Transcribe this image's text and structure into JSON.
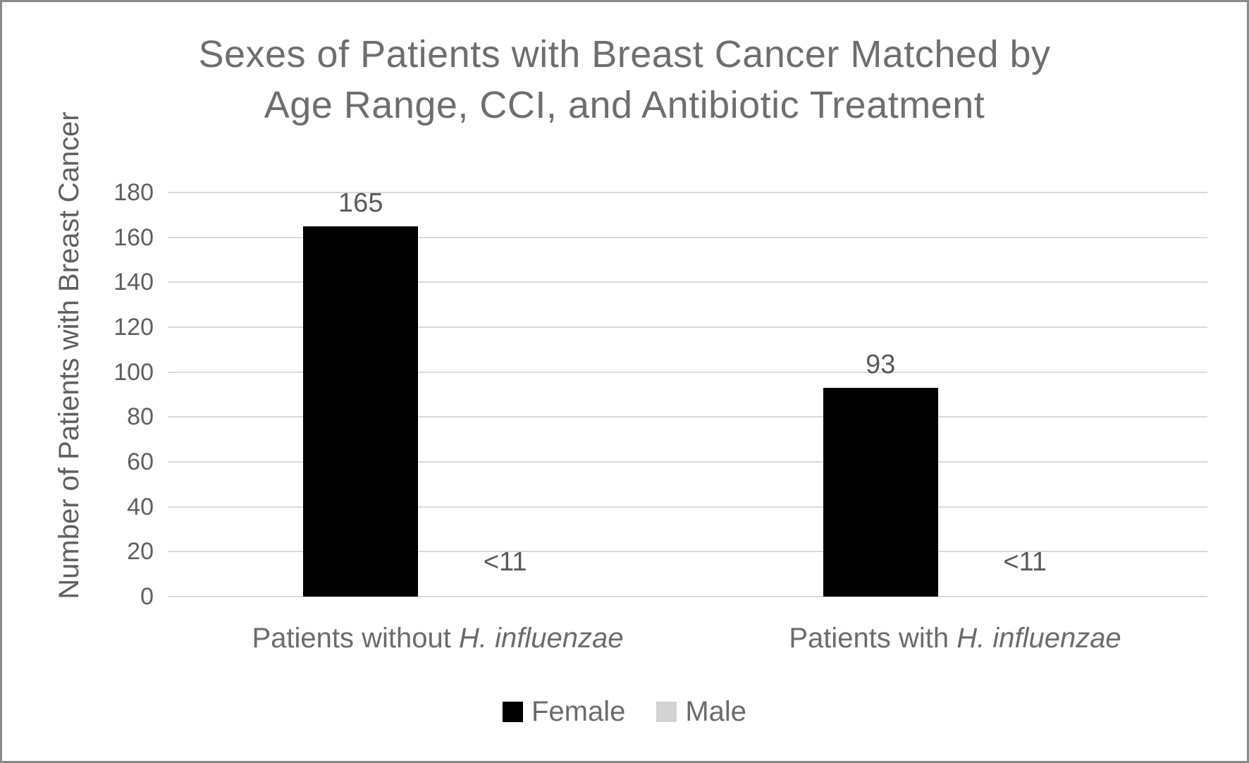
{
  "chart_data": {
    "type": "bar",
    "title": "Sexes of Patients with Breast Cancer Matched by Age Range, CCI, and Antibiotic Treatment",
    "title_line1": "Sexes of Patients with Breast Cancer Matched by",
    "title_line2": "Age Range, CCI, and Antibiotic Treatment",
    "ylabel": "Number of Patients with Breast Cancer",
    "ylim": [
      0,
      180
    ],
    "ytick_step": 20,
    "yticks": [
      0,
      20,
      40,
      60,
      80,
      100,
      120,
      140,
      160,
      180
    ],
    "grid": true,
    "legend_position": "bottom",
    "categories": [
      {
        "prefix": "Patients without ",
        "italic": "H. influenzae"
      },
      {
        "prefix": "Patients with ",
        "italic": "H. influenzae"
      }
    ],
    "series": [
      {
        "name": "Female",
        "color": "#000000",
        "values": [
          165,
          93
        ],
        "labels": [
          "165",
          "93"
        ]
      },
      {
        "name": "Male",
        "color": "#d2d2d2",
        "values": [
          null,
          null
        ],
        "labels": [
          "<11",
          "<11"
        ]
      }
    ],
    "colors": {
      "grid": "#d9d9d9",
      "axis_text": "#5f5f5f",
      "title_text": "#6e6e6e",
      "female_bar": "#000000",
      "male_swatch": "#d2d2d2"
    }
  }
}
